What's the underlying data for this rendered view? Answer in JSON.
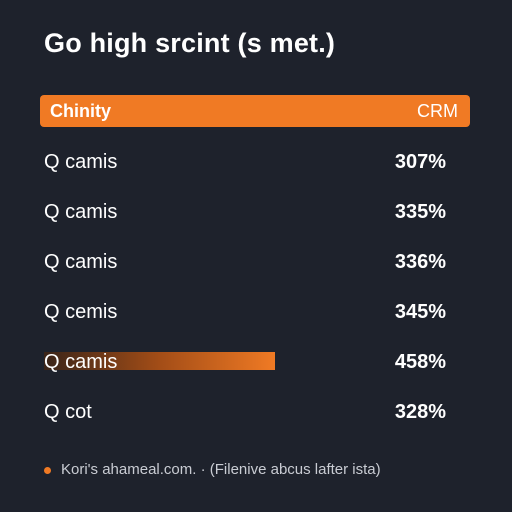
{
  "header": {
    "title": "Go high srcint (s met.)"
  },
  "table": {
    "columns": [
      "Chinity",
      "CRM"
    ],
    "rows": [
      [
        "Q camis",
        "307%"
      ],
      [
        "Q camis",
        "335%"
      ],
      [
        "Q camis",
        "336%"
      ],
      [
        "Q cemis",
        "345%"
      ],
      [
        "Q camis",
        "458%"
      ],
      [
        "Q cot",
        "328%"
      ]
    ]
  },
  "footer": {
    "note": "Kori's ahameal.com. · (Filenive abcus lafter ista)"
  }
}
